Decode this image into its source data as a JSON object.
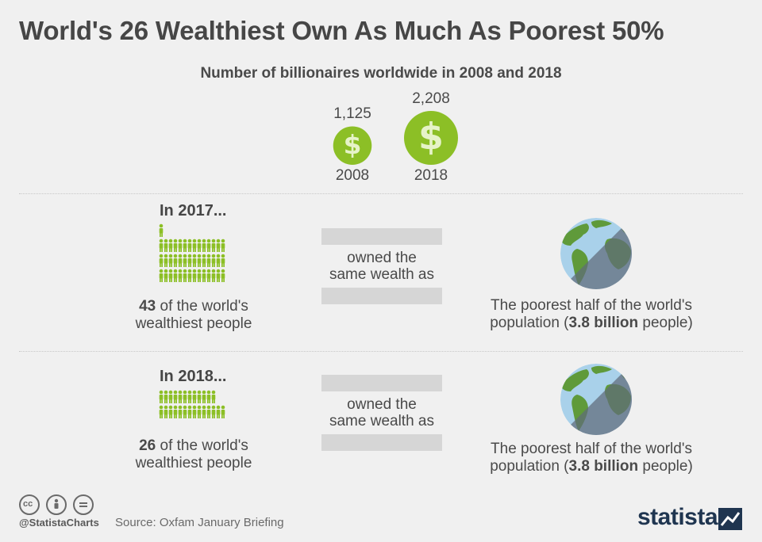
{
  "title": "World's 26 Wealthiest Own As Much As Poorest 50%",
  "subtitle": "Number of billionaires worldwide in 2008 and 2018",
  "chart_data": {
    "type": "bubble",
    "categories": [
      "2008",
      "2018"
    ],
    "values": [
      1125,
      2208
    ],
    "value_labels": [
      "1,125",
      "2,208"
    ],
    "title": "Number of billionaires worldwide in 2008 and 2018"
  },
  "sections": [
    {
      "heading": "In 2017...",
      "people_count": 43,
      "people_number": "43",
      "people_text": " of the world's",
      "people_text2": "wealthiest people",
      "owned_line1": "owned the",
      "owned_line2": "same wealth as",
      "poor_line1": "The poorest half of the world's",
      "poor_line2_a": "population (",
      "poor_line2_b": "3.8 billion",
      "poor_line2_c": " people)"
    },
    {
      "heading": "In 2018...",
      "people_count": 26,
      "people_number": "26",
      "people_text": " of the world's",
      "people_text2": "wealthiest people",
      "owned_line1": "owned the",
      "owned_line2": "same wealth as",
      "poor_line1": "The poorest half of the world's",
      "poor_line2_a": "population (",
      "poor_line2_b": "3.8 billion",
      "poor_line2_c": " people)"
    }
  ],
  "footer": {
    "handle": "@StatistaCharts",
    "source": "Source: Oxfam January Briefing",
    "brand": "statista"
  },
  "colors": {
    "green": "#8cbf26",
    "icon_dark": "#6a6a6a",
    "bar_gray": "#d6d6d6",
    "ocean": "#a9d1ea",
    "land": "#5f9a3a",
    "globe_shadow": "#5f6b7a",
    "brand_navy": "#1f3550"
  },
  "icons": {
    "dollar_coin": "dollar-coin-icon",
    "person": "person-icon",
    "globe": "globe-icon"
  }
}
